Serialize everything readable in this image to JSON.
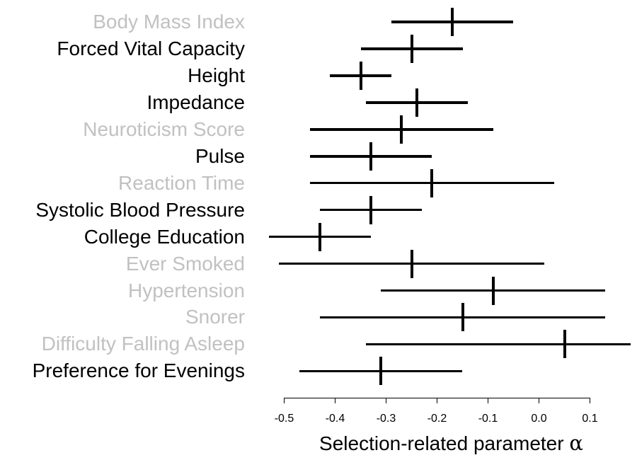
{
  "chart_data": {
    "type": "forest",
    "title": "",
    "xlabel_text": "Selection-related parameter",
    "xlabel_symbol": "α",
    "x_ticks": [
      {
        "value": -0.5,
        "label": "-0.5"
      },
      {
        "value": -0.4,
        "label": "-0.4"
      },
      {
        "value": -0.3,
        "label": "-0.3"
      },
      {
        "value": -0.2,
        "label": "-0.2"
      },
      {
        "value": -0.1,
        "label": "-0.1"
      },
      {
        "value": 0.0,
        "label": "0.0"
      },
      {
        "value": 0.1,
        "label": "0.1"
      }
    ],
    "xlim": [
      -0.54,
      0.19
    ],
    "grid": false,
    "legend": false,
    "colors": {
      "interval": "#000000",
      "label_highlighted": "#000000",
      "label_muted": "#c1c1c1",
      "axis": "#000000"
    },
    "rows": [
      {
        "label": "Body Mass Index",
        "muted": true,
        "estimate": -0.17,
        "ci_low": -0.29,
        "ci_high": -0.05
      },
      {
        "label": "Forced Vital Capacity",
        "muted": false,
        "estimate": -0.25,
        "ci_low": -0.35,
        "ci_high": -0.15
      },
      {
        "label": "Height",
        "muted": false,
        "estimate": -0.35,
        "ci_low": -0.41,
        "ci_high": -0.29
      },
      {
        "label": "Impedance",
        "muted": false,
        "estimate": -0.24,
        "ci_low": -0.34,
        "ci_high": -0.14
      },
      {
        "label": "Neuroticism Score",
        "muted": true,
        "estimate": -0.27,
        "ci_low": -0.45,
        "ci_high": -0.09
      },
      {
        "label": "Pulse",
        "muted": false,
        "estimate": -0.33,
        "ci_low": -0.45,
        "ci_high": -0.21
      },
      {
        "label": "Reaction Time",
        "muted": true,
        "estimate": -0.21,
        "ci_low": -0.45,
        "ci_high": 0.03
      },
      {
        "label": "Systolic Blood Pressure",
        "muted": false,
        "estimate": -0.33,
        "ci_low": -0.43,
        "ci_high": -0.23
      },
      {
        "label": "College Education",
        "muted": false,
        "estimate": -0.43,
        "ci_low": -0.53,
        "ci_high": -0.33
      },
      {
        "label": "Ever Smoked",
        "muted": true,
        "estimate": -0.25,
        "ci_low": -0.51,
        "ci_high": 0.01
      },
      {
        "label": "Hypertension",
        "muted": true,
        "estimate": -0.09,
        "ci_low": -0.31,
        "ci_high": 0.13
      },
      {
        "label": "Snorer",
        "muted": true,
        "estimate": -0.15,
        "ci_low": -0.43,
        "ci_high": 0.13
      },
      {
        "label": "Difficulty Falling Asleep",
        "muted": true,
        "estimate": 0.05,
        "ci_low": -0.34,
        "ci_high": 0.18
      },
      {
        "label": "Preference for Evenings",
        "muted": false,
        "estimate": -0.31,
        "ci_low": -0.47,
        "ci_high": -0.15
      }
    ]
  }
}
